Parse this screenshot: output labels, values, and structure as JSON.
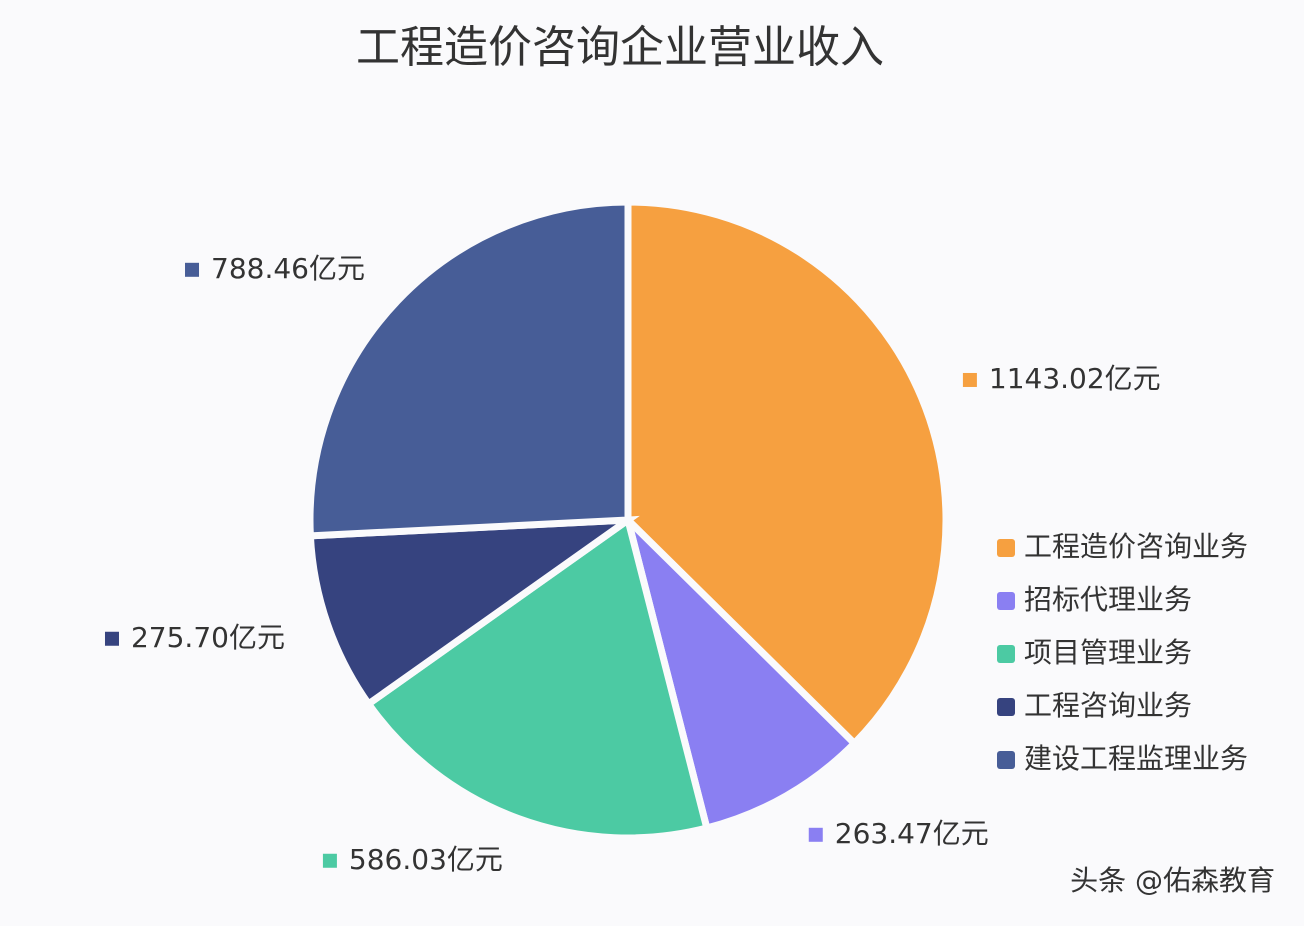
{
  "chart_data": {
    "type": "pie",
    "title": "工程造价咨询企业营业收入",
    "categories": [
      "工程造价咨询业务",
      "招标代理业务",
      "项目管理业务",
      "工程咨询业务",
      "建设工程监理业务"
    ],
    "values": [
      1143.02,
      263.47,
      586.03,
      275.7,
      788.46
    ],
    "value_labels": [
      "1143.02亿元",
      "263.47亿元",
      "586.03亿元",
      "275.70亿元",
      "788.46亿元"
    ],
    "colors": [
      "#f6a040",
      "#8a7ff2",
      "#4ccaa3",
      "#36437f",
      "#475d97"
    ],
    "legend": "right",
    "watermark": "头条 @佑森教育"
  }
}
